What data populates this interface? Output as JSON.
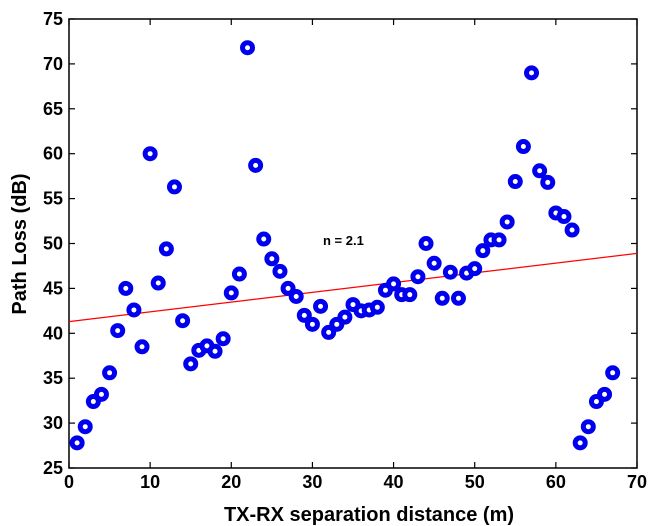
{
  "chart_data": {
    "type": "scatter",
    "xlabel": "TX-RX separation distance (m)",
    "ylabel": "Path Loss (dB)",
    "xlim": [
      0,
      70
    ],
    "ylim": [
      25,
      75
    ],
    "xticks": [
      "0",
      "10",
      "20",
      "30",
      "40",
      "50",
      "60",
      "70"
    ],
    "yticks": [
      "25",
      "30",
      "35",
      "40",
      "45",
      "50",
      "55",
      "60",
      "65",
      "70",
      "75"
    ],
    "grid": false,
    "annotation": "n = 2.1",
    "marker_color": "#0000ee",
    "fit_line_color": "#ff0000",
    "fit_line": {
      "x": [
        0,
        70
      ],
      "y": [
        41.3,
        48.9
      ]
    },
    "points": {
      "x": [
        1,
        2,
        3,
        4,
        5,
        6,
        7,
        8,
        9,
        10,
        11,
        12,
        13,
        14,
        15,
        16,
        17,
        18,
        19,
        20,
        21,
        22,
        23,
        24,
        25,
        26,
        27,
        28,
        29,
        30,
        31,
        32,
        33,
        34,
        35,
        36,
        37,
        38,
        39,
        40,
        41,
        42,
        43,
        44,
        45,
        46,
        47,
        48,
        49,
        50,
        51,
        52,
        53,
        54,
        55,
        56,
        57,
        58,
        59,
        60,
        61,
        62,
        63,
        64,
        65,
        66,
        67
      ],
      "y": [
        27.8,
        29.6,
        32.4,
        33.2,
        35.6,
        40.3,
        45.0,
        42.6,
        38.5,
        60.0,
        45.6,
        49.4,
        56.3,
        41.4,
        36.6,
        38.1,
        38.6,
        38.0,
        39.4,
        44.5,
        46.6,
        71.8,
        58.7,
        50.5,
        48.3,
        46.9,
        45.0,
        44.1,
        42.0,
        41.0,
        43.0,
        40.1,
        41.0,
        41.8,
        43.2,
        42.5,
        42.6,
        42.9,
        44.8,
        45.5,
        44.3,
        44.3,
        46.3,
        50.0,
        47.8,
        43.9,
        46.8,
        43.9,
        46.7,
        47.2,
        49.2,
        50.4,
        50.4,
        52.4,
        56.9,
        60.8,
        69.0,
        58.1,
        56.8,
        53.4,
        53.0,
        51.5,
        27.8,
        29.6,
        32.4,
        33.2,
        35.6
      ]
    }
  }
}
